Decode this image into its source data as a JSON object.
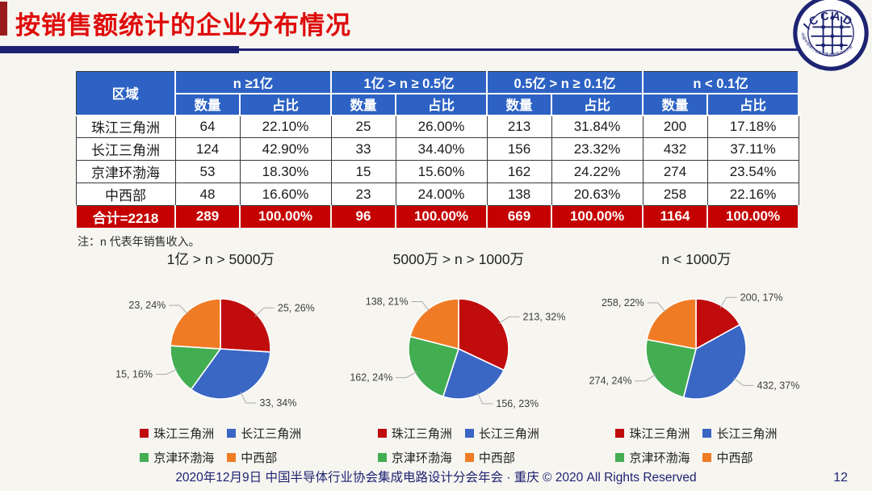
{
  "title": "按销售额统计的企业分布情况",
  "logo": {
    "text": "ICCAD",
    "subtext": "中国半导体行业协会集成电路设计分会"
  },
  "note": "注：n 代表年销售收入。",
  "table": {
    "region_header": "区域",
    "group_headers": [
      "n ≥1亿",
      "1亿 > n ≥ 0.5亿",
      "0.5亿 > n ≥ 0.1亿",
      "n < 0.1亿"
    ],
    "sub_headers": [
      "数量",
      "占比"
    ],
    "rows": [
      {
        "region": "珠江三角洲",
        "values": [
          "64",
          "22.10%",
          "25",
          "26.00%",
          "213",
          "31.84%",
          "200",
          "17.18%"
        ]
      },
      {
        "region": "长江三角洲",
        "values": [
          "124",
          "42.90%",
          "33",
          "34.40%",
          "156",
          "23.32%",
          "432",
          "37.11%"
        ]
      },
      {
        "region": "京津环渤海",
        "values": [
          "53",
          "18.30%",
          "15",
          "15.60%",
          "162",
          "24.22%",
          "274",
          "23.54%"
        ]
      },
      {
        "region": "中西部",
        "values": [
          "48",
          "16.60%",
          "23",
          "24.00%",
          "138",
          "20.63%",
          "258",
          "22.16%"
        ]
      }
    ],
    "total_row": {
      "region": "合计=2218",
      "values": [
        "289",
        "100.00%",
        "96",
        "100.00%",
        "669",
        "100.00%",
        "1164",
        "100.00%"
      ]
    }
  },
  "legend": {
    "items": [
      {
        "label": "珠江三角洲",
        "color": "#C00C0C"
      },
      {
        "label": "长江三角洲",
        "color": "#3A66C4"
      },
      {
        "label": "京津环渤海",
        "color": "#43AD52"
      },
      {
        "label": "中西部",
        "color": "#F07B25"
      }
    ]
  },
  "chart_data": [
    {
      "type": "pie",
      "title": "1亿 > n > 5000万",
      "categories": [
        "珠江三角洲",
        "长江三角洲",
        "京津环渤海",
        "中西部"
      ],
      "values": [
        25,
        33,
        15,
        23
      ],
      "percents": [
        26,
        34,
        16,
        24
      ],
      "labels": [
        "25, 26%",
        "33, 34%",
        "15, 16%",
        "23, 24%"
      ],
      "legend_position": "bottom"
    },
    {
      "type": "pie",
      "title": "5000万 > n > 1000万",
      "categories": [
        "珠江三角洲",
        "长江三角洲",
        "京津环渤海",
        "中西部"
      ],
      "values": [
        213,
        156,
        162,
        138
      ],
      "percents": [
        32,
        23,
        24,
        21
      ],
      "labels": [
        "213, 32%",
        "156, 23%",
        "162, 24%",
        "138, 21%"
      ],
      "legend_position": "bottom"
    },
    {
      "type": "pie",
      "title": "n < 1000万",
      "categories": [
        "珠江三角洲",
        "长江三角洲",
        "京津环渤海",
        "中西部"
      ],
      "values": [
        200,
        432,
        274,
        258
      ],
      "percents": [
        17,
        37,
        24,
        22
      ],
      "labels": [
        "200, 17%",
        "432, 37%",
        "274, 24%",
        "258, 22%"
      ],
      "legend_position": "bottom"
    }
  ],
  "footer": {
    "text": "2020年12月9日 中国半导体行业协会集成电路设计分会年会 · 重庆 © 2020 All Rights Reserved",
    "page": "12"
  },
  "colors": {
    "title_red": "#DF0B0B",
    "navy": "#1E2072",
    "header_blue": "#2D62C4",
    "total_red": "#C50000",
    "background": "#F6F5F0",
    "pie_colors": [
      "#C00C0C",
      "#3A66C4",
      "#43AD52",
      "#F07B25"
    ]
  }
}
